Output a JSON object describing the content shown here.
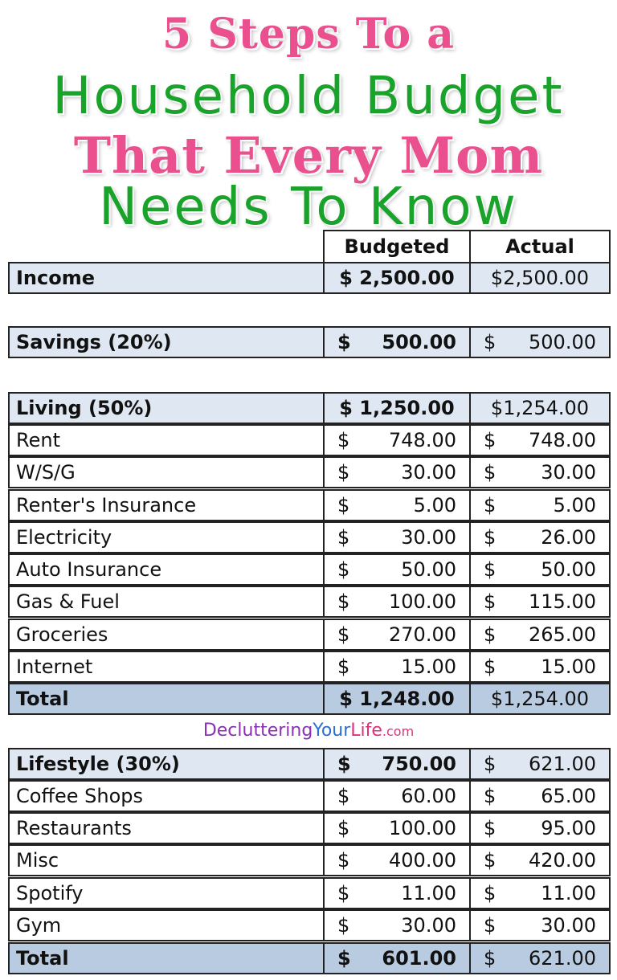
{
  "title": {
    "line1": "5 Steps To a",
    "line2": "Household Budget",
    "line3": "That Every Mom",
    "line4": "Needs To Know"
  },
  "table": {
    "col_budgeted": "Budgeted",
    "col_actual": "Actual",
    "income": {
      "label": "Income",
      "budgeted": "$ 2,500.00",
      "actual": "$2,500.00"
    },
    "savings": {
      "label": "Savings (20%)",
      "budgeted_sym": "$",
      "budgeted": "500.00",
      "actual_sym": "$",
      "actual": "500.00"
    },
    "living": {
      "header": {
        "label": "Living (50%)",
        "budgeted": "$ 1,250.00",
        "actual": "$1,254.00"
      },
      "rows": [
        {
          "label": "Rent",
          "budgeted": "748.00",
          "actual": "748.00"
        },
        {
          "label": "W/S/G",
          "budgeted": "30.00",
          "actual": "30.00"
        },
        {
          "label": "Renter's Insurance",
          "budgeted": "5.00",
          "actual": "5.00"
        },
        {
          "label": "Electricity",
          "budgeted": "30.00",
          "actual": "26.00"
        },
        {
          "label": "Auto Insurance",
          "budgeted": "50.00",
          "actual": "50.00"
        },
        {
          "label": "Gas & Fuel",
          "budgeted": "100.00",
          "actual": "115.00"
        },
        {
          "label": "Groceries",
          "budgeted": "270.00",
          "actual": "265.00"
        },
        {
          "label": "Internet",
          "budgeted": "15.00",
          "actual": "15.00"
        }
      ],
      "total": {
        "label": "Total",
        "budgeted": "$ 1,248.00",
        "actual": "$1,254.00"
      }
    },
    "lifestyle": {
      "header": {
        "label": "Lifestyle (30%)",
        "budgeted_sym": "$",
        "budgeted": "750.00",
        "actual_sym": "$",
        "actual": "621.00"
      },
      "rows": [
        {
          "label": "Coffee Shops",
          "budgeted": "60.00",
          "actual": "65.00"
        },
        {
          "label": "Restaurants",
          "budgeted": "100.00",
          "actual": "95.00"
        },
        {
          "label": "Misc",
          "budgeted": "400.00",
          "actual": "420.00"
        },
        {
          "label": "Spotify",
          "budgeted": "11.00",
          "actual": "11.00"
        },
        {
          "label": "Gym",
          "budgeted": "30.00",
          "actual": "30.00"
        }
      ],
      "total": {
        "label": "Total",
        "budgeted_sym": "$",
        "budgeted": "601.00",
        "actual_sym": "$",
        "actual": "621.00"
      }
    },
    "currency_symbol": "$"
  },
  "watermark": {
    "part1": "Decluttering",
    "part2": "Your",
    "part3": "Life",
    "part4": ".com"
  }
}
